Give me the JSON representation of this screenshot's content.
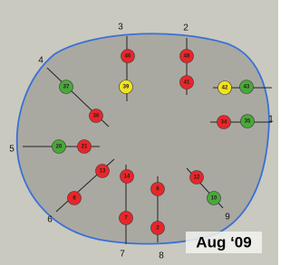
{
  "transects": [
    {
      "label": "1"
    },
    {
      "label": "2"
    },
    {
      "label": "3"
    },
    {
      "label": "4"
    },
    {
      "label": "5"
    },
    {
      "label": "6"
    },
    {
      "label": "7"
    },
    {
      "label": "8"
    },
    {
      "label": "9"
    }
  ],
  "points": [
    {
      "label": "46",
      "color": "#e8262a"
    },
    {
      "label": "48",
      "color": "#e8262a"
    },
    {
      "label": "39",
      "color": "#f2e21c"
    },
    {
      "label": "41",
      "color": "#e8262a"
    },
    {
      "label": "37",
      "color": "#4aa83a"
    },
    {
      "label": "36",
      "color": "#e8262a"
    },
    {
      "label": "42",
      "color": "#f2e21c"
    },
    {
      "label": "43",
      "color": "#4aa83a"
    },
    {
      "label": "34",
      "color": "#e8262a"
    },
    {
      "label": "35",
      "color": "#4aa83a"
    },
    {
      "label": "20",
      "color": "#4aa83a"
    },
    {
      "label": "21",
      "color": "#e8262a"
    },
    {
      "label": "13",
      "color": "#e8262a"
    },
    {
      "label": "8",
      "color": "#e8262a"
    },
    {
      "label": "14",
      "color": "#e8262a"
    },
    {
      "label": "6",
      "color": "#e8262a"
    },
    {
      "label": "12",
      "color": "#e8262a"
    },
    {
      "label": "10",
      "color": "#4aa83a"
    },
    {
      "label": "7",
      "color": "#e8262a"
    },
    {
      "label": "2",
      "color": "#e8262a"
    }
  ],
  "date": "Aug ‘09"
}
